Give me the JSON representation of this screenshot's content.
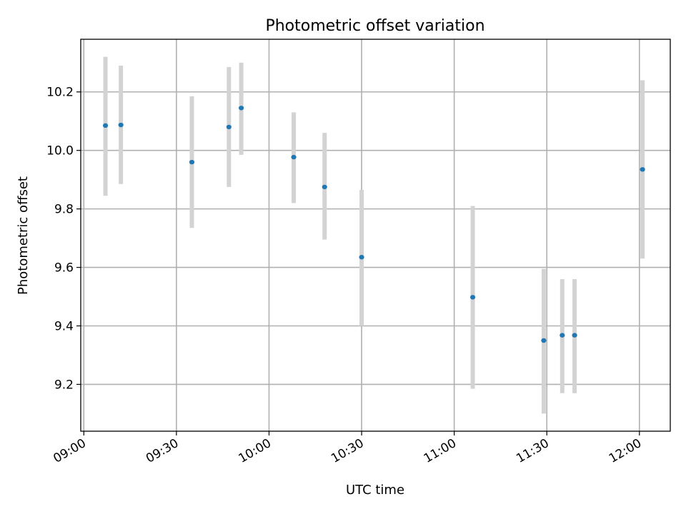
{
  "chart_data": {
    "type": "scatter",
    "title": "Photometric offset variation",
    "xlabel": "UTC time",
    "ylabel": "Photometric offset",
    "x_ticks": [
      "09:00",
      "09:30",
      "10:00",
      "10:30",
      "11:00",
      "11:30",
      "12:00"
    ],
    "y_ticks": [
      9.2,
      9.4,
      9.6,
      9.8,
      10.0,
      10.2
    ],
    "xlim": [
      "08:59",
      "12:10"
    ],
    "ylim": [
      9.04,
      10.38
    ],
    "grid": true,
    "colors": {
      "point": "#1f77b4",
      "errorbar": "#d3d3d3"
    },
    "series": [
      {
        "points": [
          {
            "t": "09:07",
            "y": 10.085,
            "ylow": 9.845,
            "yhigh": 10.32
          },
          {
            "t": "09:12",
            "y": 10.087,
            "ylow": 9.885,
            "yhigh": 10.29
          },
          {
            "t": "09:35",
            "y": 9.96,
            "ylow": 9.735,
            "yhigh": 10.185
          },
          {
            "t": "09:47",
            "y": 10.08,
            "ylow": 9.875,
            "yhigh": 10.285
          },
          {
            "t": "09:51",
            "y": 10.145,
            "ylow": 9.985,
            "yhigh": 10.3
          },
          {
            "t": "10:08",
            "y": 9.977,
            "ylow": 9.82,
            "yhigh": 10.13
          },
          {
            "t": "10:18",
            "y": 9.875,
            "ylow": 9.695,
            "yhigh": 10.06
          },
          {
            "t": "10:30",
            "y": 9.635,
            "ylow": 9.4,
            "yhigh": 9.865
          },
          {
            "t": "11:06",
            "y": 9.498,
            "ylow": 9.185,
            "yhigh": 9.81
          },
          {
            "t": "11:29",
            "y": 9.35,
            "ylow": 9.1,
            "yhigh": 9.595
          },
          {
            "t": "11:35",
            "y": 9.368,
            "ylow": 9.17,
            "yhigh": 9.56
          },
          {
            "t": "11:39",
            "y": 9.368,
            "ylow": 9.17,
            "yhigh": 9.56
          },
          {
            "t": "12:01",
            "y": 9.935,
            "ylow": 9.63,
            "yhigh": 10.24
          }
        ]
      }
    ]
  }
}
